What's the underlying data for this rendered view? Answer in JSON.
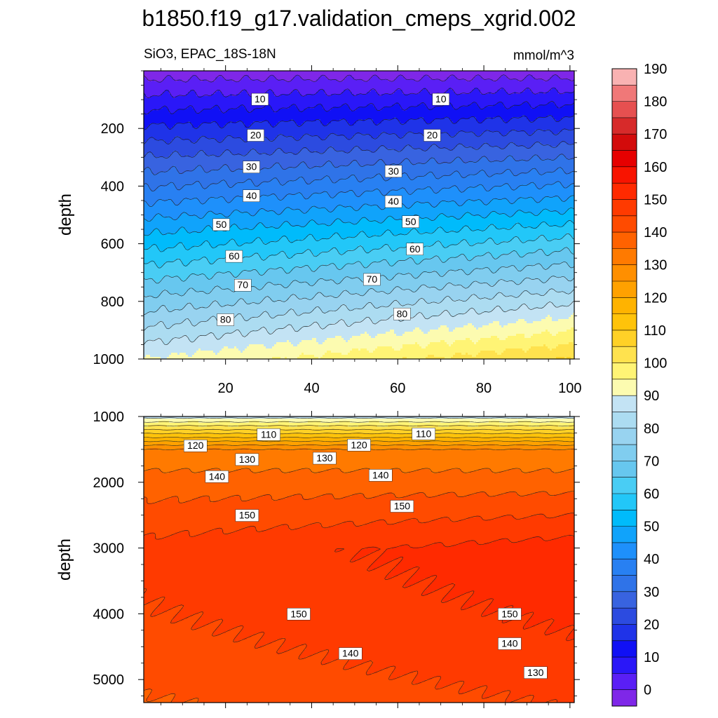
{
  "chart_data": {
    "title": "b1850.f19_g17.validation_cmeps_xgrid.002",
    "type": "contour",
    "variable": "SiO3",
    "region": "EPAC_18S-18N",
    "left_string": "SiO3, EPAC_18S-18N",
    "units": "mmol/m^3",
    "panels": [
      {
        "name": "upper",
        "ylabel": "depth",
        "xlim": [
          1,
          101
        ],
        "ylim": [
          0,
          1000
        ],
        "x_ticks": [
          "20",
          "40",
          "60",
          "80",
          "100"
        ],
        "x_tick_values": [
          20,
          40,
          60,
          80,
          100
        ],
        "y_ticks": [
          "200",
          "400",
          "600",
          "800",
          "1000"
        ],
        "y_tick_values": [
          200,
          400,
          600,
          800,
          1000
        ],
        "contour_levels": [
          0,
          5,
          10,
          15,
          20,
          25,
          30,
          35,
          40,
          45,
          50,
          55,
          60,
          65,
          70,
          75,
          80,
          85,
          90
        ],
        "line_labels": [
          {
            "text": "10",
            "x": 28,
            "depth": 100
          },
          {
            "text": "10",
            "x": 70,
            "depth": 100
          },
          {
            "text": "20",
            "x": 27,
            "depth": 225
          },
          {
            "text": "20",
            "x": 68,
            "depth": 225
          },
          {
            "text": "30",
            "x": 26,
            "depth": 335
          },
          {
            "text": "30",
            "x": 59,
            "depth": 350
          },
          {
            "text": "40",
            "x": 26,
            "depth": 435
          },
          {
            "text": "40",
            "x": 59,
            "depth": 455
          },
          {
            "text": "50",
            "x": 19,
            "depth": 535
          },
          {
            "text": "50",
            "x": 63,
            "depth": 525
          },
          {
            "text": "60",
            "x": 22,
            "depth": 645
          },
          {
            "text": "60",
            "x": 64,
            "depth": 620
          },
          {
            "text": "70",
            "x": 24,
            "depth": 745
          },
          {
            "text": "70",
            "x": 54,
            "depth": 725
          },
          {
            "text": "80",
            "x": 20,
            "depth": 865
          },
          {
            "text": "80",
            "x": 61,
            "depth": 845
          }
        ]
      },
      {
        "name": "lower",
        "ylabel": "depth",
        "xlim": [
          1,
          101
        ],
        "ylim": [
          1000,
          5350
        ],
        "y_ticks": [
          "1000",
          "2000",
          "3000",
          "4000",
          "5000"
        ],
        "y_tick_values": [
          1000,
          2000,
          3000,
          4000,
          5000
        ],
        "contour_levels": [
          95,
          100,
          105,
          110,
          115,
          120,
          125,
          130,
          135,
          140,
          145,
          150,
          155
        ],
        "line_labels": [
          {
            "text": "110",
            "x": 30,
            "depth": 1280
          },
          {
            "text": "110",
            "x": 66,
            "depth": 1270
          },
          {
            "text": "120",
            "x": 13,
            "depth": 1450
          },
          {
            "text": "120",
            "x": 51,
            "depth": 1440
          },
          {
            "text": "130",
            "x": 25,
            "depth": 1660
          },
          {
            "text": "130",
            "x": 43,
            "depth": 1640
          },
          {
            "text": "140",
            "x": 18,
            "depth": 1920
          },
          {
            "text": "140",
            "x": 56,
            "depth": 1900
          },
          {
            "text": "150",
            "x": 25,
            "depth": 2510
          },
          {
            "text": "150",
            "x": 61,
            "depth": 2370
          },
          {
            "text": "150",
            "x": 37,
            "depth": 4010
          },
          {
            "text": "150",
            "x": 86,
            "depth": 4010
          },
          {
            "text": "140",
            "x": 49,
            "depth": 4610
          },
          {
            "text": "140",
            "x": 86,
            "depth": 4460
          },
          {
            "text": "130",
            "x": 92,
            "depth": 4900
          }
        ]
      }
    ],
    "colorbar": {
      "labels": [
        "0",
        "10",
        "20",
        "30",
        "40",
        "50",
        "60",
        "70",
        "80",
        "90",
        "100",
        "110",
        "120",
        "130",
        "140",
        "150",
        "160",
        "170",
        "180",
        "190"
      ],
      "colors": [
        "#7f27e8",
        "#5a1ff5",
        "#2a17f8",
        "#1010f5",
        "#1f33e8",
        "#2c4be0",
        "#3863e0",
        "#2f73e8",
        "#2880f2",
        "#1e90fb",
        "#10a3fb",
        "#00bbfb",
        "#22c7f8",
        "#49cdf4",
        "#67c7ef",
        "#80cdef",
        "#98d3f0",
        "#acdcf1",
        "#c3e3f4",
        "#fcfbb0",
        "#fff475",
        "#ffe24e",
        "#ffd127",
        "#ffc30a",
        "#ffb300",
        "#ffa100",
        "#ff8f00",
        "#ff7a00",
        "#ff6200",
        "#ff4b00",
        "#ff3a00",
        "#ff2a00",
        "#f81400",
        "#e60000",
        "#d30b0b",
        "#d72a2a",
        "#e65050",
        "#f07878",
        "#f9b2b2"
      ]
    }
  }
}
